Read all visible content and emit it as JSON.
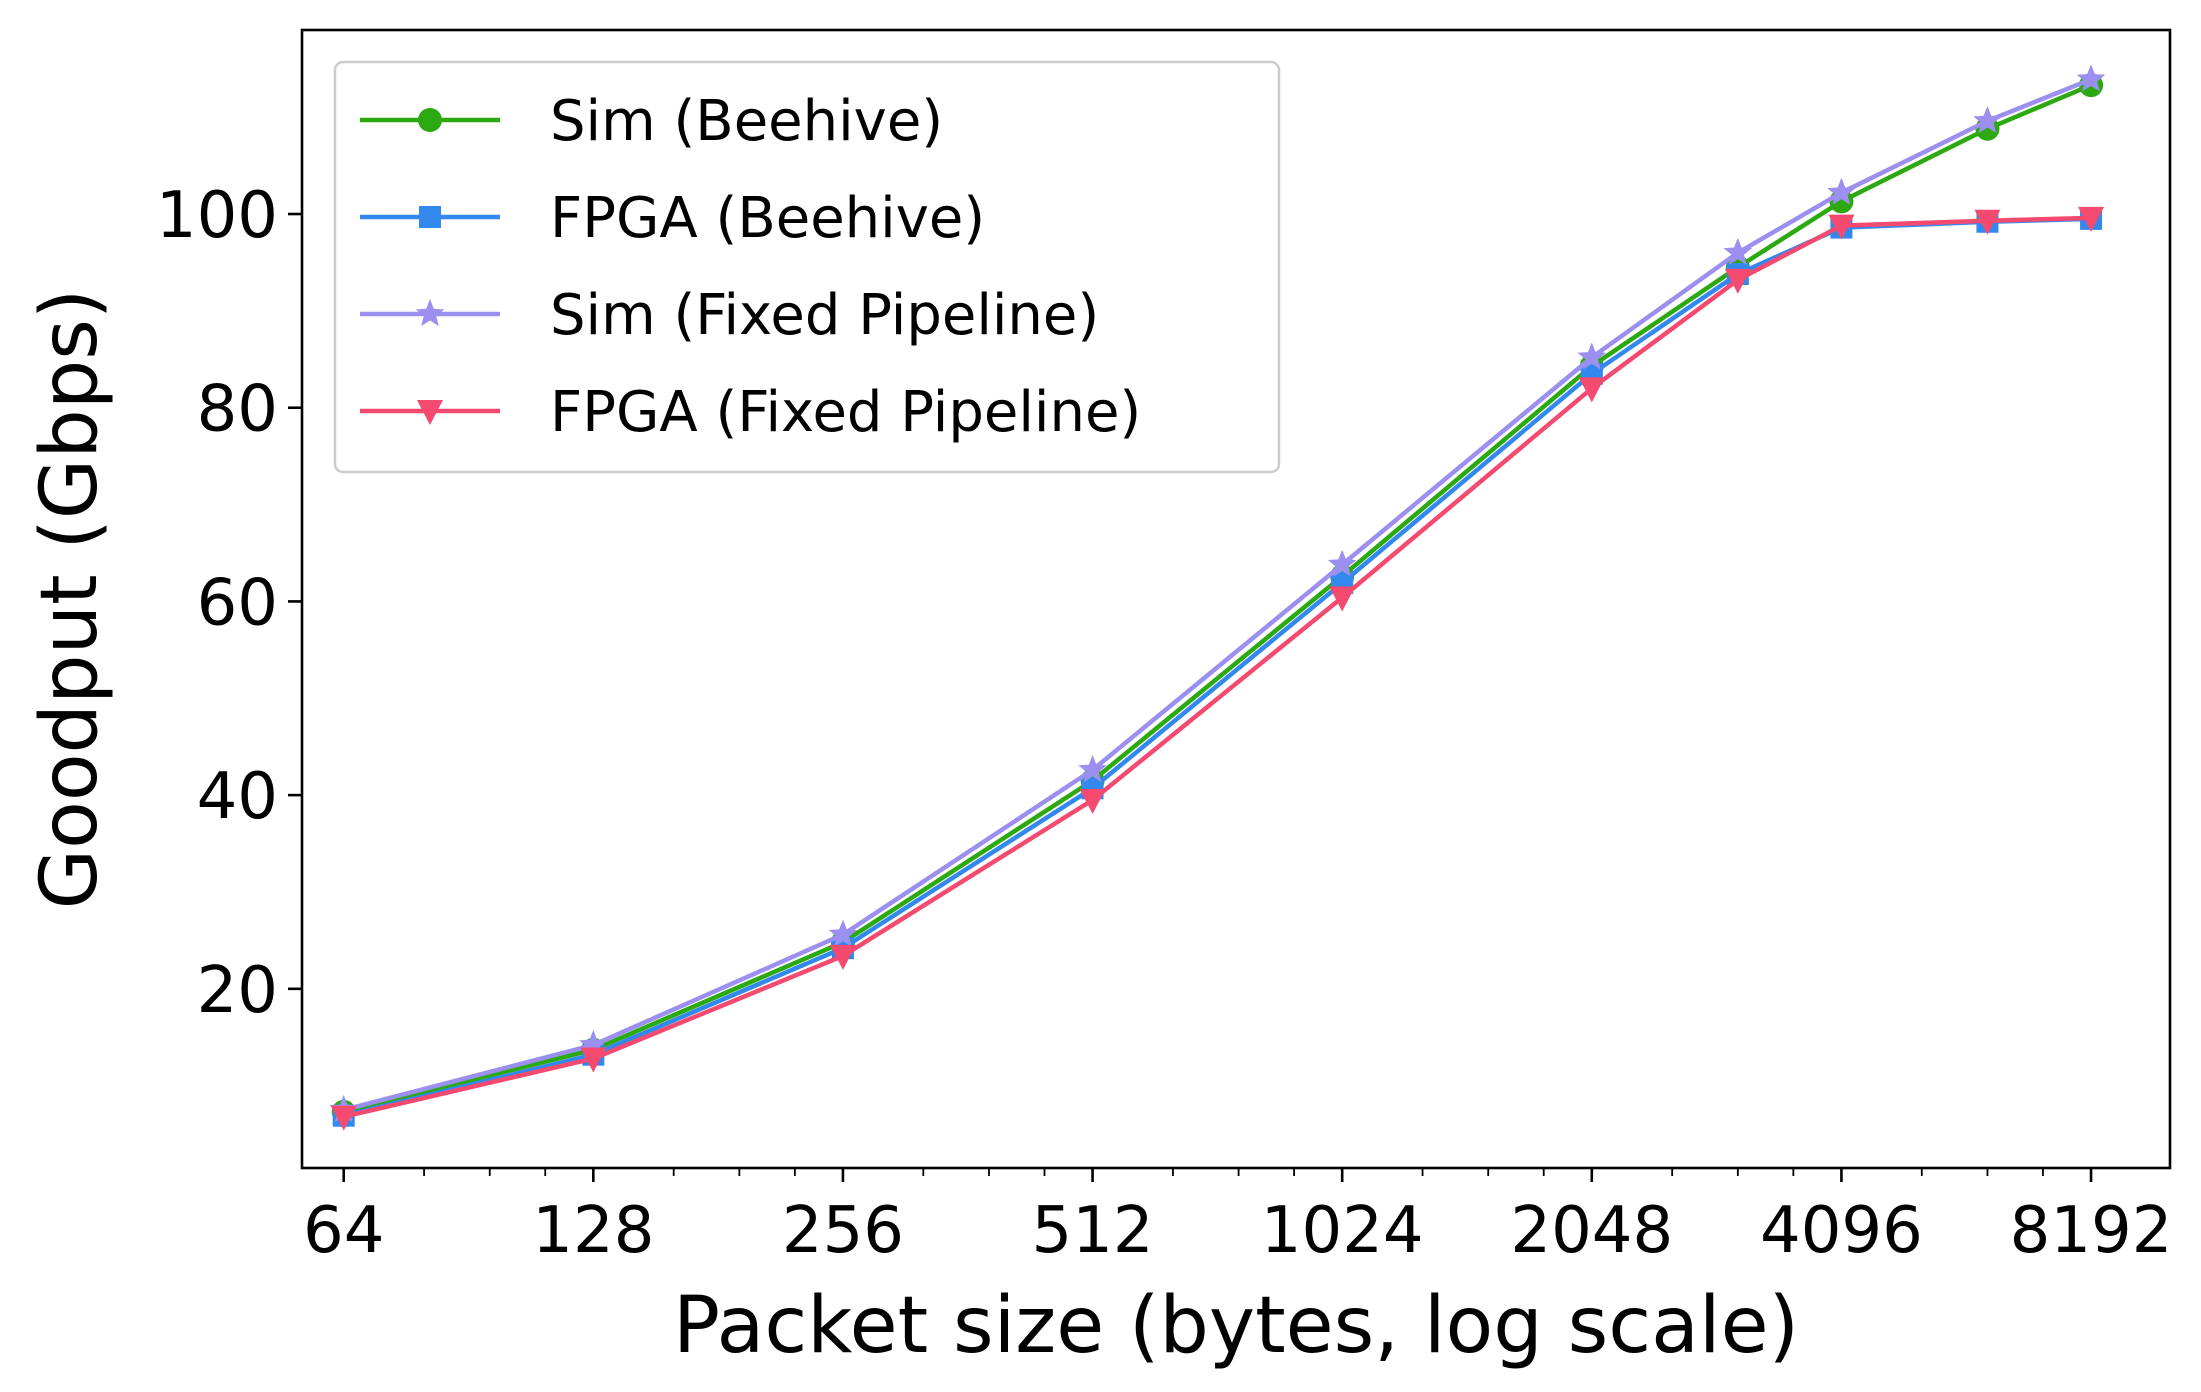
{
  "chart_data": {
    "type": "line",
    "xlabel": "Packet size (bytes, log scale)",
    "ylabel": "Goodput (Gbps)",
    "x_scale": "log2",
    "x_ticks": [
      64,
      128,
      256,
      512,
      1024,
      2048,
      4096,
      8192
    ],
    "x_tick_labels": [
      "64",
      "128",
      "256",
      "512",
      "1024",
      "2048",
      "4096",
      "8192"
    ],
    "xlim": [
      57,
      10200
    ],
    "y_ticks": [
      20,
      40,
      60,
      80,
      100
    ],
    "y_tick_labels": [
      "20",
      "40",
      "60",
      "80",
      "100"
    ],
    "ylim": [
      1.5,
      119
    ],
    "grid": false,
    "legend_position": "upper-left",
    "x": [
      64,
      128,
      256,
      512,
      1024,
      2048,
      3072,
      4096,
      6144,
      8192
    ],
    "series": [
      {
        "name": "Sim (Beehive)",
        "color": "#2ca810",
        "marker": "circle",
        "values": [
          7.3,
          13.7,
          24.8,
          41.5,
          62.6,
          84.3,
          94.5,
          101.3,
          108.8,
          113.3
        ]
      },
      {
        "name": "FPGA (Beehive)",
        "color": "#3388ee",
        "marker": "square",
        "values": [
          6.9,
          13.2,
          24.2,
          40.7,
          61.9,
          83.5,
          93.8,
          98.6,
          99.2,
          99.5
        ]
      },
      {
        "name": "Sim (Fixed Pipeline)",
        "color": "#9b8ff0",
        "marker": "star",
        "values": [
          7.5,
          14.2,
          25.6,
          42.6,
          63.8,
          85.2,
          96.0,
          102.2,
          109.6,
          113.9
        ]
      },
      {
        "name": "FPGA (Fixed Pipeline)",
        "color": "#f54a70",
        "marker": "triangle-down",
        "values": [
          6.8,
          12.8,
          23.4,
          39.5,
          60.4,
          82.0,
          93.2,
          98.8,
          99.3,
          99.6
        ]
      }
    ]
  }
}
